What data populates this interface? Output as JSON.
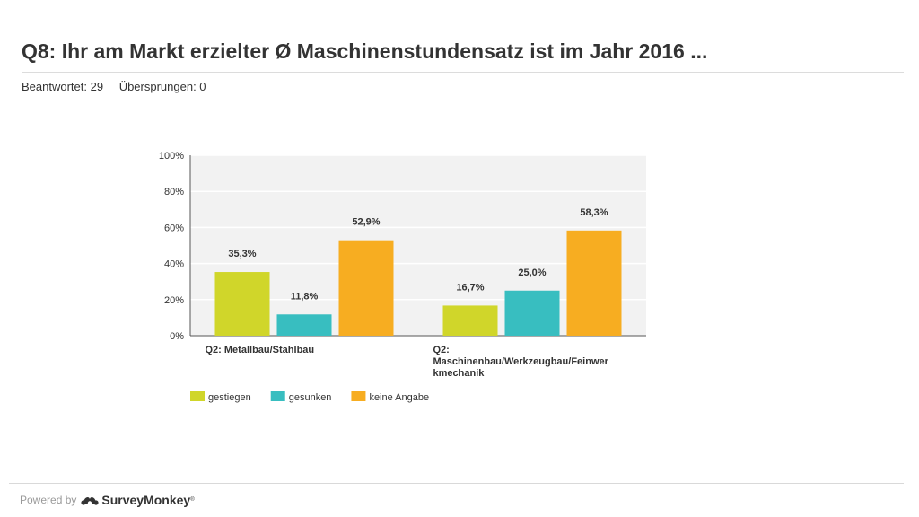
{
  "page": {
    "title": "Q8: Ihr am Markt erzielter Ø Maschinenstundensatz ist im Jahr 2016 ...",
    "answered": "Beantwortet: 29",
    "skipped": "Übersprungen: 0"
  },
  "footer": {
    "powered_by": "Powered by",
    "brand": "SurveyMonkey",
    "tm": "®"
  },
  "colors": {
    "plot_bg": "#f2f2f2",
    "grid": "#ffffff",
    "axis": "#555555"
  },
  "chart_data": {
    "type": "bar",
    "title": "",
    "xlabel": "",
    "ylabel": "",
    "ylim": [
      0,
      100
    ],
    "yticks": [
      "0%",
      "20%",
      "40%",
      "60%",
      "80%",
      "100%"
    ],
    "categories": [
      [
        "Q2: Metallbau/Stahlbau"
      ],
      [
        "Q2:",
        "Maschinenbau/Werkzeugbau/Feinwer",
        "kmechanik"
      ]
    ],
    "series": [
      {
        "name": "gestiegen",
        "color": "#d0d62a",
        "values": [
          35.3,
          16.7
        ],
        "labels": [
          "35,3%",
          "16,7%"
        ]
      },
      {
        "name": "gesunken",
        "color": "#38bec0",
        "values": [
          11.8,
          25.0
        ],
        "labels": [
          "11,8%",
          "25,0%"
        ]
      },
      {
        "name": "keine Angabe",
        "color": "#f7ad21",
        "values": [
          52.9,
          58.3
        ],
        "labels": [
          "52,9%",
          "58,3%"
        ]
      }
    ],
    "legend_position": "bottom-left"
  }
}
